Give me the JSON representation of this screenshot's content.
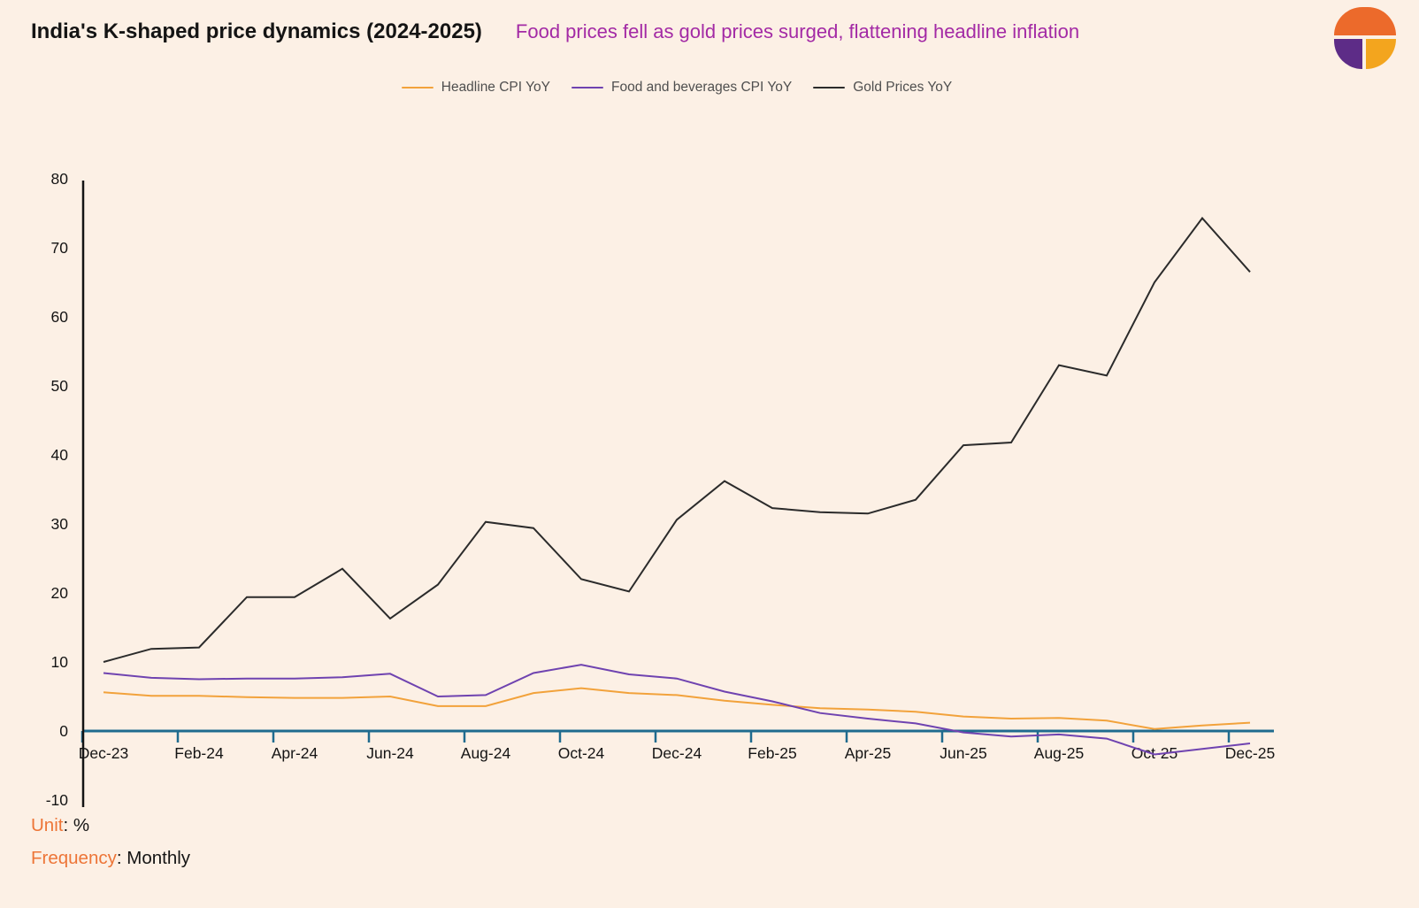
{
  "header": {
    "title": "India's K-shaped price dynamics (2024-2025)",
    "subtitle": "Food prices fell as gold prices surged, flattening headline inflation"
  },
  "footer": {
    "unit_label": "Unit",
    "unit_value": ": %",
    "frequency_label": "Frequency",
    "frequency_value": ": Monthly"
  },
  "colors": {
    "background": "#FCF0E5",
    "subtitle": "#A32AA5",
    "zero_line": "#1F6B8E",
    "axis": "#141414",
    "legend_text": "#4F4F4F",
    "footer_key": "#ED7537"
  },
  "chart_data": {
    "type": "line",
    "title": "India's K-shaped price dynamics (2024-2025)",
    "subtitle": "Food prices fell as gold prices surged, flattening headline inflation",
    "unit": "%",
    "frequency": "Monthly",
    "grid": false,
    "legend_position": "top",
    "ylim": [
      -10,
      80
    ],
    "yticks": [
      80,
      70,
      60,
      50,
      40,
      30,
      20,
      10,
      0,
      -10
    ],
    "x": [
      "Dec-23",
      "Jan-24",
      "Feb-24",
      "Mar-24",
      "Apr-24",
      "May-24",
      "Jun-24",
      "Jul-24",
      "Aug-24",
      "Sep-24",
      "Oct-24",
      "Nov-24",
      "Dec-24",
      "Jan-25",
      "Feb-25",
      "Mar-25",
      "Apr-25",
      "May-25",
      "Jun-25",
      "Jul-25",
      "Aug-25",
      "Sep-25",
      "Oct-25",
      "Nov-25",
      "Dec-25"
    ],
    "x_tick_labels": [
      "Dec-23",
      "Feb-24",
      "Apr-24",
      "Jun-24",
      "Aug-24",
      "Oct-24",
      "Dec-24",
      "Feb-25",
      "Apr-25",
      "Jun-25",
      "Aug-25",
      "Oct-25",
      "Dec-25"
    ],
    "series": [
      {
        "name": "Headline CPI YoY",
        "color": "#F2A23B",
        "values": [
          5.6,
          5.1,
          5.1,
          4.9,
          4.8,
          4.8,
          5.0,
          3.6,
          3.6,
          5.5,
          6.2,
          5.5,
          5.2,
          4.4,
          3.8,
          3.3,
          3.1,
          2.8,
          2.1,
          1.8,
          1.9,
          1.5,
          0.3,
          0.8,
          1.2
        ]
      },
      {
        "name": "Food and beverages CPI YoY",
        "color": "#6F43B0",
        "values": [
          8.4,
          7.7,
          7.5,
          7.6,
          7.6,
          7.8,
          8.3,
          5.0,
          5.2,
          8.4,
          9.6,
          8.2,
          7.6,
          5.7,
          4.3,
          2.6,
          1.8,
          1.1,
          -0.2,
          -0.8,
          -0.5,
          -1.1,
          -3.4,
          -2.6,
          -1.8
        ]
      },
      {
        "name": "Gold Prices YoY",
        "color": "#2B2B2B",
        "values": [
          10.0,
          11.9,
          12.1,
          19.4,
          19.4,
          23.5,
          16.3,
          21.2,
          30.3,
          29.4,
          22.0,
          20.2,
          30.6,
          36.2,
          32.3,
          31.7,
          31.5,
          33.5,
          41.4,
          41.8,
          53.0,
          51.5,
          65.0,
          74.3,
          66.5
        ]
      }
    ]
  }
}
